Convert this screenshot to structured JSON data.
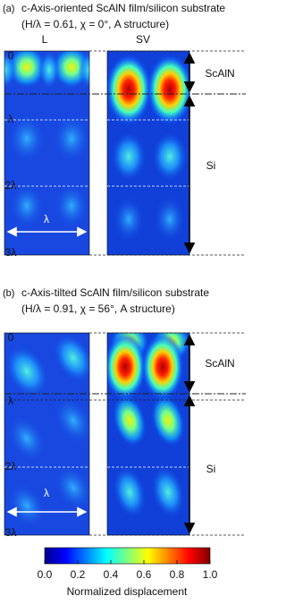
{
  "panels": [
    {
      "tag": "(a)",
      "title": "c-Axis-oriented ScAlN film/silicon substrate",
      "subtitle": "(H/λ = 0.61, χ = 0°, A structure)",
      "columns": [
        "L",
        "SV"
      ],
      "depth_labels": [
        "0",
        "λ",
        "2λ",
        "3λ"
      ],
      "regions": [
        "ScAlN",
        "Si"
      ],
      "width_label": "λ"
    },
    {
      "tag": "(b)",
      "title": "c-Axis-tilted ScAlN film/silicon substrate",
      "subtitle": "(H/λ = 0.91, χ = 56°, A structure)",
      "columns": [],
      "depth_labels": [
        "0",
        "λ",
        "2λ",
        "3λ"
      ],
      "regions": [
        "ScAlN",
        "Si"
      ],
      "width_label": "λ"
    }
  ],
  "colorbar": {
    "ticks": [
      "0.0",
      "0.2",
      "0.4",
      "0.6",
      "0.8",
      "1.0"
    ],
    "label": "Normalized displacement"
  }
}
